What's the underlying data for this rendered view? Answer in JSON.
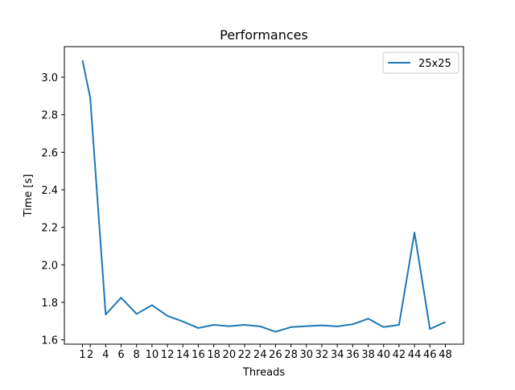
{
  "chart_data": {
    "type": "line",
    "title": "Performances",
    "xlabel": "Threads",
    "ylabel": "Time [s]",
    "x": [
      1,
      2,
      4,
      6,
      8,
      10,
      12,
      14,
      16,
      18,
      20,
      22,
      24,
      26,
      28,
      30,
      32,
      34,
      36,
      38,
      40,
      42,
      44,
      46,
      48
    ],
    "xticks": [
      "1",
      "2",
      "4",
      "6",
      "8",
      "10",
      "12",
      "14",
      "16",
      "18",
      "20",
      "22",
      "24",
      "26",
      "28",
      "30",
      "32",
      "34",
      "36",
      "38",
      "40",
      "42",
      "44",
      "46",
      "48"
    ],
    "yticks": [
      "1.6",
      "1.8",
      "2.0",
      "2.2",
      "2.4",
      "2.6",
      "2.8",
      "3.0"
    ],
    "xlim": [
      -1.35,
      50.35
    ],
    "ylim": [
      1.577,
      3.163
    ],
    "grid": false,
    "legend_position": "top-right",
    "series": [
      {
        "name": "25x25",
        "color": "#1f77b4",
        "values": [
          3.09,
          2.89,
          1.735,
          1.825,
          1.738,
          1.785,
          1.728,
          1.698,
          1.663,
          1.68,
          1.673,
          1.68,
          1.672,
          1.643,
          1.668,
          1.673,
          1.677,
          1.672,
          1.683,
          1.713,
          1.668,
          1.68,
          2.172,
          1.658,
          1.695
        ]
      }
    ]
  }
}
